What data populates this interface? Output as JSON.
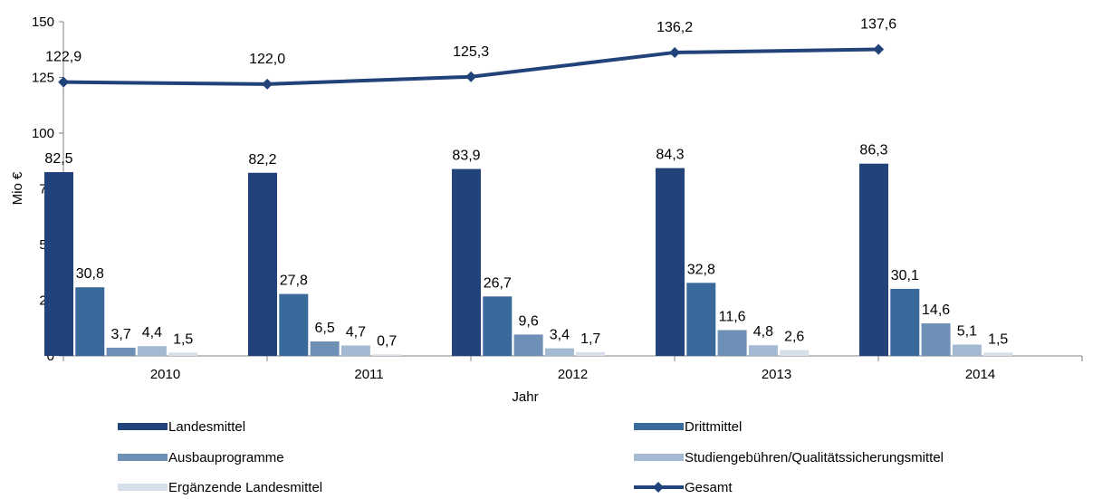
{
  "chart_data": {
    "type": "bar",
    "ylabel": "Mio €",
    "xlabel": "Jahr",
    "ylim": [
      0,
      150
    ],
    "yticks": [
      0,
      25,
      50,
      75,
      100,
      125,
      150
    ],
    "grid": false,
    "legend_position": "bottom",
    "categories": [
      "2010",
      "2011",
      "2012",
      "2013",
      "2014"
    ],
    "series": [
      {
        "name": "Landesmittel",
        "type": "bar",
        "color": "#22427a",
        "values": [
          82.5,
          82.2,
          83.9,
          84.3,
          86.3
        ],
        "labels": [
          "82,5",
          "82,2",
          "83,9",
          "84,3",
          "86,3"
        ]
      },
      {
        "name": "Drittmittel",
        "type": "bar",
        "color": "#3a6a9c",
        "values": [
          30.8,
          27.8,
          26.7,
          32.8,
          30.1
        ],
        "labels": [
          "30,8",
          "27,8",
          "26,7",
          "32,8",
          "30,1"
        ]
      },
      {
        "name": "Ausbauprogramme",
        "type": "bar",
        "color": "#6f90b6",
        "values": [
          3.7,
          6.5,
          9.6,
          11.6,
          14.6
        ],
        "labels": [
          "3,7",
          "6,5",
          "9,6",
          "11,6",
          "14,6"
        ]
      },
      {
        "name": "Studiengebühren/Qualitätssicherungsmittel",
        "type": "bar",
        "color": "#a4bad3",
        "values": [
          4.4,
          4.7,
          3.4,
          4.8,
          5.1
        ],
        "labels": [
          "4,4",
          "4,7",
          "3,4",
          "4,8",
          "5,1"
        ]
      },
      {
        "name": "Ergänzende Landesmittel",
        "type": "bar",
        "color": "#d6dfea",
        "values": [
          1.5,
          0.7,
          1.7,
          2.6,
          1.5
        ],
        "labels": [
          "1,5",
          "0,7",
          "1,7",
          "2,6",
          "1,5"
        ]
      },
      {
        "name": "Gesamt",
        "type": "line",
        "marker": "diamond",
        "color": "#22427a",
        "values": [
          122.9,
          122.0,
          125.3,
          136.2,
          137.6
        ],
        "labels": [
          "122,9",
          "122,0",
          "125,3",
          "136,2",
          "137,6"
        ]
      }
    ]
  }
}
